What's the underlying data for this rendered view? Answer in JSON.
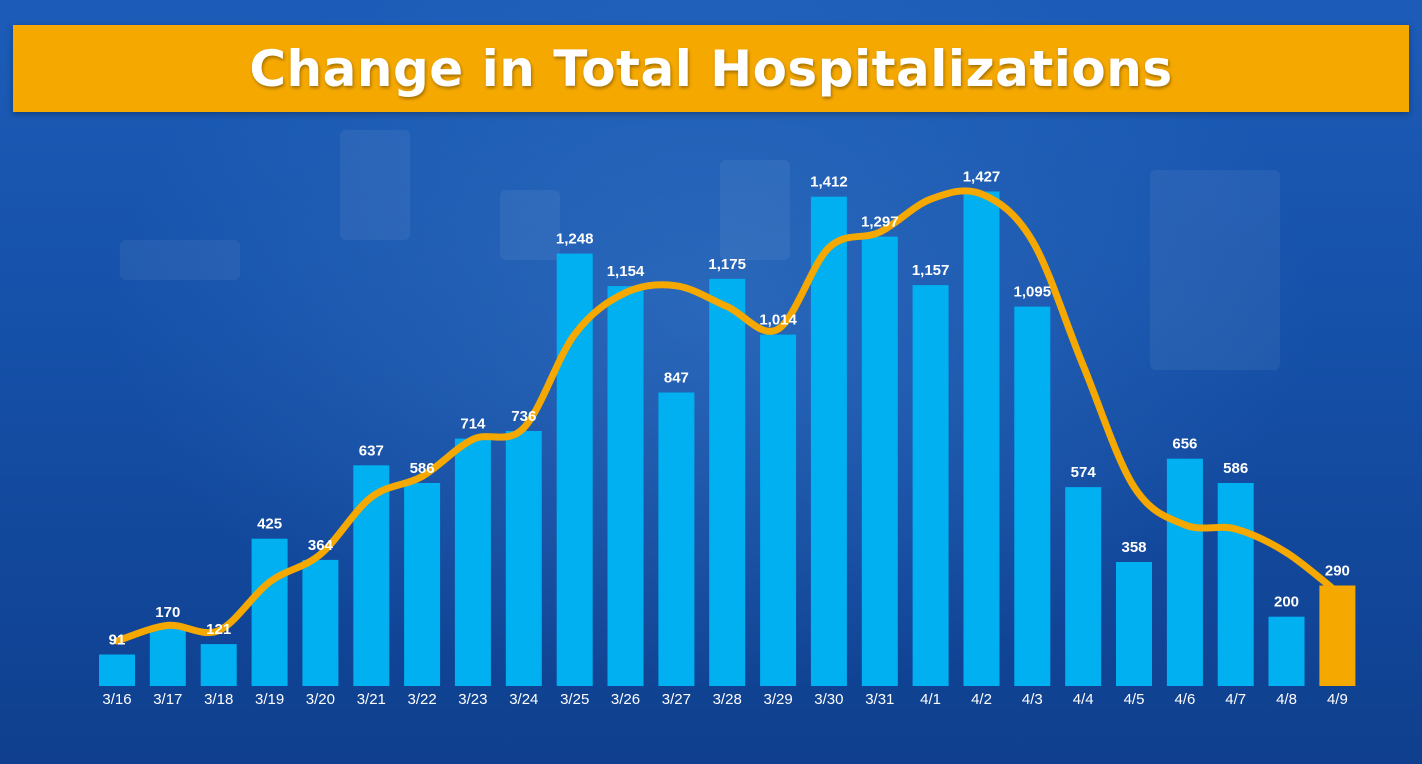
{
  "title": "Change in Total Hospitalizations",
  "colors": {
    "bar": "#00b0f0",
    "highlight_bar": "#f5a800",
    "trend_line": "#f5a800",
    "banner": "#f5a800",
    "label": "#ffffff"
  },
  "chart_data": {
    "type": "bar",
    "title": "Change in Total Hospitalizations",
    "xlabel": "",
    "ylabel": "",
    "ylim": [
      0,
      1500
    ],
    "grid": false,
    "categories": [
      "3/16",
      "3/17",
      "3/18",
      "3/19",
      "3/20",
      "3/21",
      "3/22",
      "3/23",
      "3/24",
      "3/25",
      "3/26",
      "3/27",
      "3/28",
      "3/29",
      "3/30",
      "3/31",
      "4/1",
      "4/2",
      "4/3",
      "4/4",
      "4/5",
      "4/6",
      "4/7",
      "4/8",
      "4/9"
    ],
    "values": [
      91,
      170,
      121,
      425,
      364,
      637,
      586,
      714,
      736,
      1248,
      1154,
      847,
      1175,
      1014,
      1412,
      1297,
      1157,
      1427,
      1095,
      574,
      358,
      656,
      586,
      200,
      290
    ],
    "labels": [
      "91",
      "170",
      "121",
      "425",
      "364",
      "637",
      "586",
      "714",
      "736",
      "1,248",
      "1,154",
      "847",
      "1,175",
      "1,014",
      "1,412",
      "1,297",
      "1,157",
      "1,427",
      "1,095",
      "574",
      "358",
      "656",
      "586",
      "200",
      "290"
    ],
    "highlight_category": "4/9",
    "trend_line": [
      130,
      175,
      160,
      300,
      380,
      545,
      605,
      712,
      745,
      1015,
      1135,
      1155,
      1095,
      1030,
      1265,
      1310,
      1405,
      1420,
      1285,
      925,
      575,
      465,
      453,
      385,
      270
    ]
  }
}
